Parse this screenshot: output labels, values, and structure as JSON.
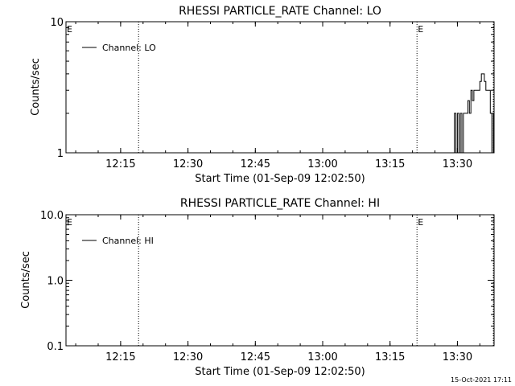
{
  "footer": {
    "timestamp": "15-Oct-2021 17:11"
  },
  "chart_data": [
    {
      "type": "line",
      "title": "RHESSI PARTICLE_RATE Channel: LO",
      "xlabel": "Start Time (01-Sep-09 12:02:50)",
      "ylabel": "Counts/sec",
      "yscale": "log",
      "ylim": [
        1,
        10
      ],
      "y_ticks": [
        "1",
        "10"
      ],
      "x_start": "12:02:50",
      "x_ticks": [
        "12:15",
        "12:30",
        "12:45",
        "13:00",
        "13:15",
        "13:30"
      ],
      "flag_label": "E",
      "flag_lines": [
        "12:02:50",
        "13:21:00"
      ],
      "event_lines": [
        "12:19:00",
        "13:21:00",
        "13:38:00"
      ],
      "series": [
        {
          "name": "Channel: LO",
          "x": [
            "13:29:00",
            "13:29:20",
            "13:29:40",
            "13:30:00",
            "13:30:20",
            "13:30:40",
            "13:31:00",
            "13:31:20",
            "13:31:40",
            "13:32:00",
            "13:32:20",
            "13:32:40",
            "13:33:00",
            "13:33:20",
            "13:33:40",
            "13:34:00",
            "13:34:20",
            "13:34:40",
            "13:35:00",
            "13:35:20",
            "13:35:40",
            "13:36:00",
            "13:36:20",
            "13:36:40",
            "13:37:00",
            "13:37:20",
            "13:37:40",
            "13:38:00"
          ],
          "values": [
            1,
            2,
            1,
            2,
            1,
            2,
            1,
            2,
            2,
            2,
            2.5,
            2,
            3,
            2.5,
            3,
            3,
            3,
            3,
            3.5,
            4,
            4,
            3.5,
            3,
            3,
            3,
            2,
            1,
            2
          ]
        }
      ]
    },
    {
      "type": "line",
      "title": "RHESSI PARTICLE_RATE Channel: HI",
      "xlabel": "Start Time (01-Sep-09 12:02:50)",
      "ylabel": "Counts/sec",
      "yscale": "log",
      "ylim": [
        0.1,
        10
      ],
      "y_ticks": [
        "0.1",
        "1.0",
        "10.0"
      ],
      "x_start": "12:02:50",
      "x_ticks": [
        "12:15",
        "12:30",
        "12:45",
        "13:00",
        "13:15",
        "13:30"
      ],
      "flag_label": "E",
      "flag_lines": [
        "12:02:50",
        "13:21:00"
      ],
      "event_lines": [
        "12:19:00",
        "13:21:00",
        "13:38:00"
      ],
      "series": [
        {
          "name": "Channel: HI",
          "x": [],
          "values": []
        }
      ]
    }
  ]
}
